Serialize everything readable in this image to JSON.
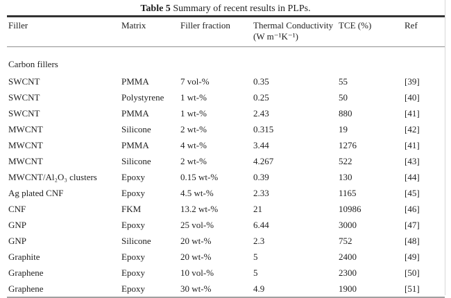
{
  "page": {
    "caption_number": "Table 5",
    "caption_text": " Summary of recent results in PLPs."
  },
  "table": {
    "columns": [
      {
        "label": "Filler"
      },
      {
        "label": "Matrix"
      },
      {
        "label": "Filler fraction"
      },
      {
        "label": "Thermal Conductivity",
        "sub": "(W m⁻¹K⁻¹)"
      },
      {
        "label": "TCE (%)"
      },
      {
        "label": "Ref"
      }
    ],
    "section_label": "Carbon fillers",
    "rows": [
      {
        "cells": [
          "SWCNT",
          "PMMA",
          "7 vol-%",
          "0.35",
          "55",
          "[39]"
        ]
      },
      {
        "cells": [
          "SWCNT",
          "Polystyrene",
          "1 wt-%",
          "0.25",
          "50",
          "[40]"
        ]
      },
      {
        "cells": [
          "SWCNT",
          "PMMA",
          "1 wt-%",
          "2.43",
          "880",
          "[41]"
        ]
      },
      {
        "cells": [
          "MWCNT",
          "Silicone",
          "2 wt-%",
          "0.315",
          "19",
          "[42]"
        ]
      },
      {
        "cells": [
          "MWCNT",
          "PMMA",
          "4 wt-%",
          "3.44",
          "1276",
          "[41]"
        ]
      },
      {
        "cells": [
          "MWCNT",
          "Silicone",
          "2 wt-%",
          "4.267",
          "522",
          "[43]"
        ]
      },
      {
        "cells": [
          "MWCNT/Al₂O₃ clusters",
          "Epoxy",
          "0.15 wt-%",
          "0.39",
          "130",
          "[44]"
        ]
      },
      {
        "cells": [
          "Ag plated CNF",
          "Epoxy",
          "4.5 wt-%",
          "2.33",
          "1165",
          "[45]"
        ]
      },
      {
        "cells": [
          "CNF",
          "FKM",
          "13.2 wt-%",
          "21",
          "10986",
          "[46]"
        ]
      },
      {
        "cells": [
          "GNP",
          "Epoxy",
          "25 vol-%",
          "6.44",
          "3000",
          "[47]"
        ]
      },
      {
        "cells": [
          "GNP",
          "Silicone",
          "20 wt-%",
          "2.3",
          "752",
          "[48]"
        ]
      },
      {
        "cells": [
          "Graphite",
          "Epoxy",
          "20 wt-%",
          "5",
          "2400",
          "[49]"
        ]
      },
      {
        "cells": [
          "Graphene",
          "Epoxy",
          "10 vol-%",
          "5",
          "2300",
          "[50]"
        ]
      },
      {
        "cells": [
          "Graphene",
          "Epoxy",
          "30 wt-%",
          "4.9",
          "1900",
          "[51]"
        ]
      }
    ]
  }
}
